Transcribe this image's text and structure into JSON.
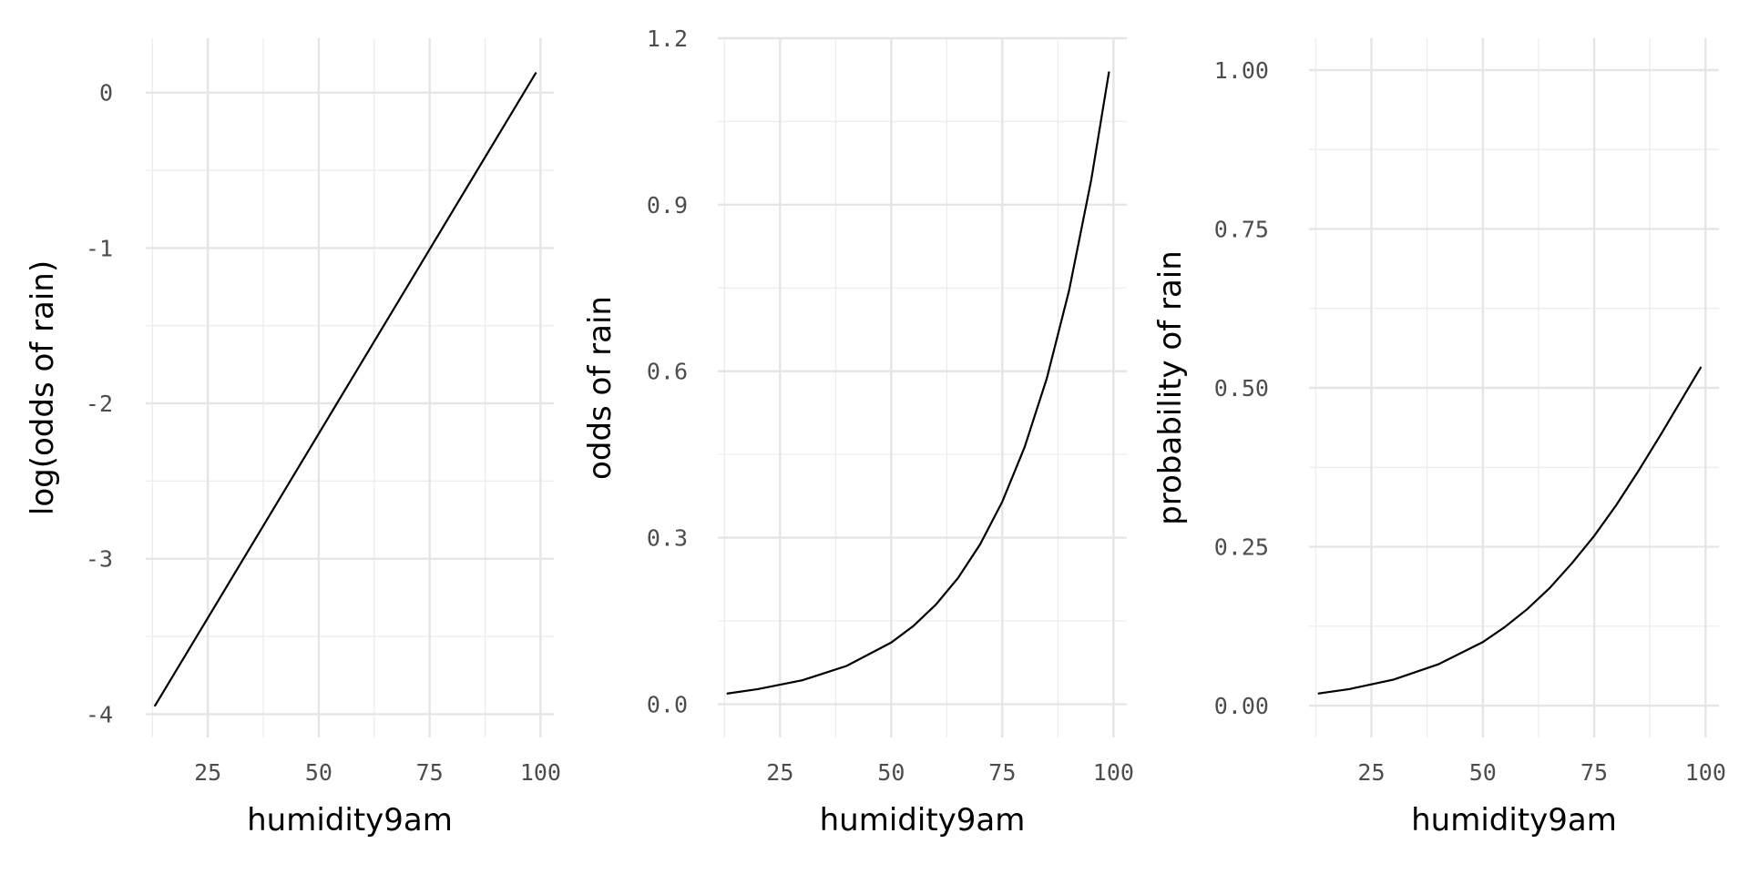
{
  "chart_data": [
    {
      "type": "line",
      "xlabel": "humidity9am",
      "ylabel": "log(odds of rain)",
      "xlim": [
        11,
        103
      ],
      "ylim": [
        -4.15,
        0.35
      ],
      "x_major_ticks": [
        25,
        50,
        75,
        100
      ],
      "x_minor_ticks": [
        12.5,
        37.5,
        62.5,
        87.5
      ],
      "y_major_ticks": [
        -4,
        -3,
        -2,
        -1,
        0
      ],
      "y_minor_ticks": [
        -3.5,
        -2.5,
        -1.5,
        -0.5
      ],
      "x_tick_labels": [
        "25",
        "50",
        "75",
        "100"
      ],
      "y_tick_labels": [
        "-4",
        "-3",
        "-2",
        "-1",
        "0"
      ],
      "grid": true,
      "series": [
        {
          "x": [
            13,
            99
          ],
          "y": [
            -3.95,
            0.13
          ]
        }
      ]
    },
    {
      "type": "line",
      "xlabel": "humidity9am",
      "ylabel": "odds of rain",
      "xlim": [
        11,
        103
      ],
      "ylim": [
        -0.06,
        1.2
      ],
      "x_major_ticks": [
        25,
        50,
        75,
        100
      ],
      "x_minor_ticks": [
        12.5,
        37.5,
        62.5,
        87.5
      ],
      "y_major_ticks": [
        0,
        0.3,
        0.6,
        0.9,
        1.2
      ],
      "y_minor_ticks": [
        0.15,
        0.45,
        0.75,
        1.05
      ],
      "x_tick_labels": [
        "25",
        "50",
        "75",
        "100"
      ],
      "y_tick_labels": [
        "0.0",
        "0.3",
        "0.6",
        "0.9",
        "1.2"
      ],
      "grid": true,
      "series": [
        {
          "x": [
            13,
            20,
            30,
            40,
            50,
            55,
            60,
            65,
            70,
            75,
            80,
            85,
            90,
            95,
            99
          ],
          "y": [
            0.019,
            0.027,
            0.043,
            0.069,
            0.111,
            0.141,
            0.179,
            0.227,
            0.288,
            0.365,
            0.463,
            0.587,
            0.745,
            0.945,
            1.14
          ]
        }
      ]
    },
    {
      "type": "line",
      "xlabel": "humidity9am",
      "ylabel": "probability of rain",
      "xlim": [
        11,
        103
      ],
      "ylim": [
        -0.05,
        1.05
      ],
      "x_major_ticks": [
        25,
        50,
        75,
        100
      ],
      "x_minor_ticks": [
        12.5,
        37.5,
        62.5,
        87.5
      ],
      "y_major_ticks": [
        0,
        0.25,
        0.5,
        0.75,
        1.0
      ],
      "y_minor_ticks": [
        0.125,
        0.375,
        0.625,
        0.875
      ],
      "x_tick_labels": [
        "25",
        "50",
        "75",
        "100"
      ],
      "y_tick_labels": [
        "0.00",
        "0.25",
        "0.50",
        "0.75",
        "1.00"
      ],
      "grid": true,
      "series": [
        {
          "x": [
            13,
            20,
            30,
            40,
            50,
            55,
            60,
            65,
            70,
            75,
            80,
            85,
            90,
            95,
            99
          ],
          "y": [
            0.019,
            0.026,
            0.041,
            0.065,
            0.1,
            0.124,
            0.152,
            0.185,
            0.224,
            0.267,
            0.316,
            0.37,
            0.427,
            0.486,
            0.533
          ]
        }
      ]
    }
  ]
}
